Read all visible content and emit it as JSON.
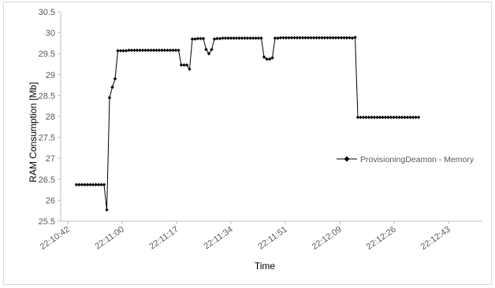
{
  "chart_data": {
    "type": "line",
    "title": "",
    "xlabel": "Time",
    "ylabel": "RAM Consumption [Mb]",
    "ylim": [
      25.5,
      30.5
    ],
    "y_ticks": [
      25.5,
      26,
      26.5,
      27,
      27.5,
      28,
      28.5,
      29,
      29.5,
      30,
      30.5
    ],
    "y_tick_labels": [
      "25.5",
      "26",
      "26.5",
      "27",
      "27.5",
      "28",
      "28.5",
      "29",
      "29.5",
      "30",
      "30.5"
    ],
    "x_tick_labels": [
      "22:10:42",
      "22:11:00",
      "22:11:17",
      "22:11:34",
      "22:11:51",
      "22:12:09",
      "22:12:26",
      "22:12:43"
    ],
    "grid": false,
    "legend": "right",
    "series": [
      {
        "name": "ProvisioningDeamon - Memory",
        "color": "#000000",
        "values": [
          26.37,
          26.37,
          26.37,
          26.37,
          26.37,
          26.37,
          26.37,
          26.37,
          26.37,
          26.37,
          26.37,
          25.77,
          28.45,
          28.7,
          28.9,
          29.57,
          29.57,
          29.57,
          29.57,
          29.58,
          29.58,
          29.58,
          29.58,
          29.58,
          29.58,
          29.58,
          29.58,
          29.58,
          29.58,
          29.58,
          29.58,
          29.58,
          29.58,
          29.58,
          29.58,
          29.58,
          29.58,
          29.58,
          29.23,
          29.23,
          29.23,
          29.13,
          29.85,
          29.85,
          29.86,
          29.86,
          29.86,
          29.6,
          29.5,
          29.6,
          29.85,
          29.86,
          29.86,
          29.87,
          29.87,
          29.87,
          29.87,
          29.87,
          29.87,
          29.87,
          29.87,
          29.87,
          29.87,
          29.87,
          29.87,
          29.87,
          29.87,
          29.87,
          29.42,
          29.37,
          29.37,
          29.4,
          29.87,
          29.87,
          29.88,
          29.88,
          29.88,
          29.88,
          29.88,
          29.88,
          29.88,
          29.88,
          29.88,
          29.88,
          29.88,
          29.88,
          29.88,
          29.88,
          29.88,
          29.88,
          29.88,
          29.88,
          29.88,
          29.88,
          29.88,
          29.88,
          29.88,
          29.88,
          29.88,
          29.88,
          29.87,
          29.89,
          27.98,
          27.98,
          27.98,
          27.98,
          27.98,
          27.98,
          27.98,
          27.98,
          27.98,
          27.98,
          27.98,
          27.98,
          27.98,
          27.98,
          27.98,
          27.98,
          27.98,
          27.98,
          27.98,
          27.98,
          27.98,
          27.98,
          27.98
        ]
      }
    ]
  }
}
